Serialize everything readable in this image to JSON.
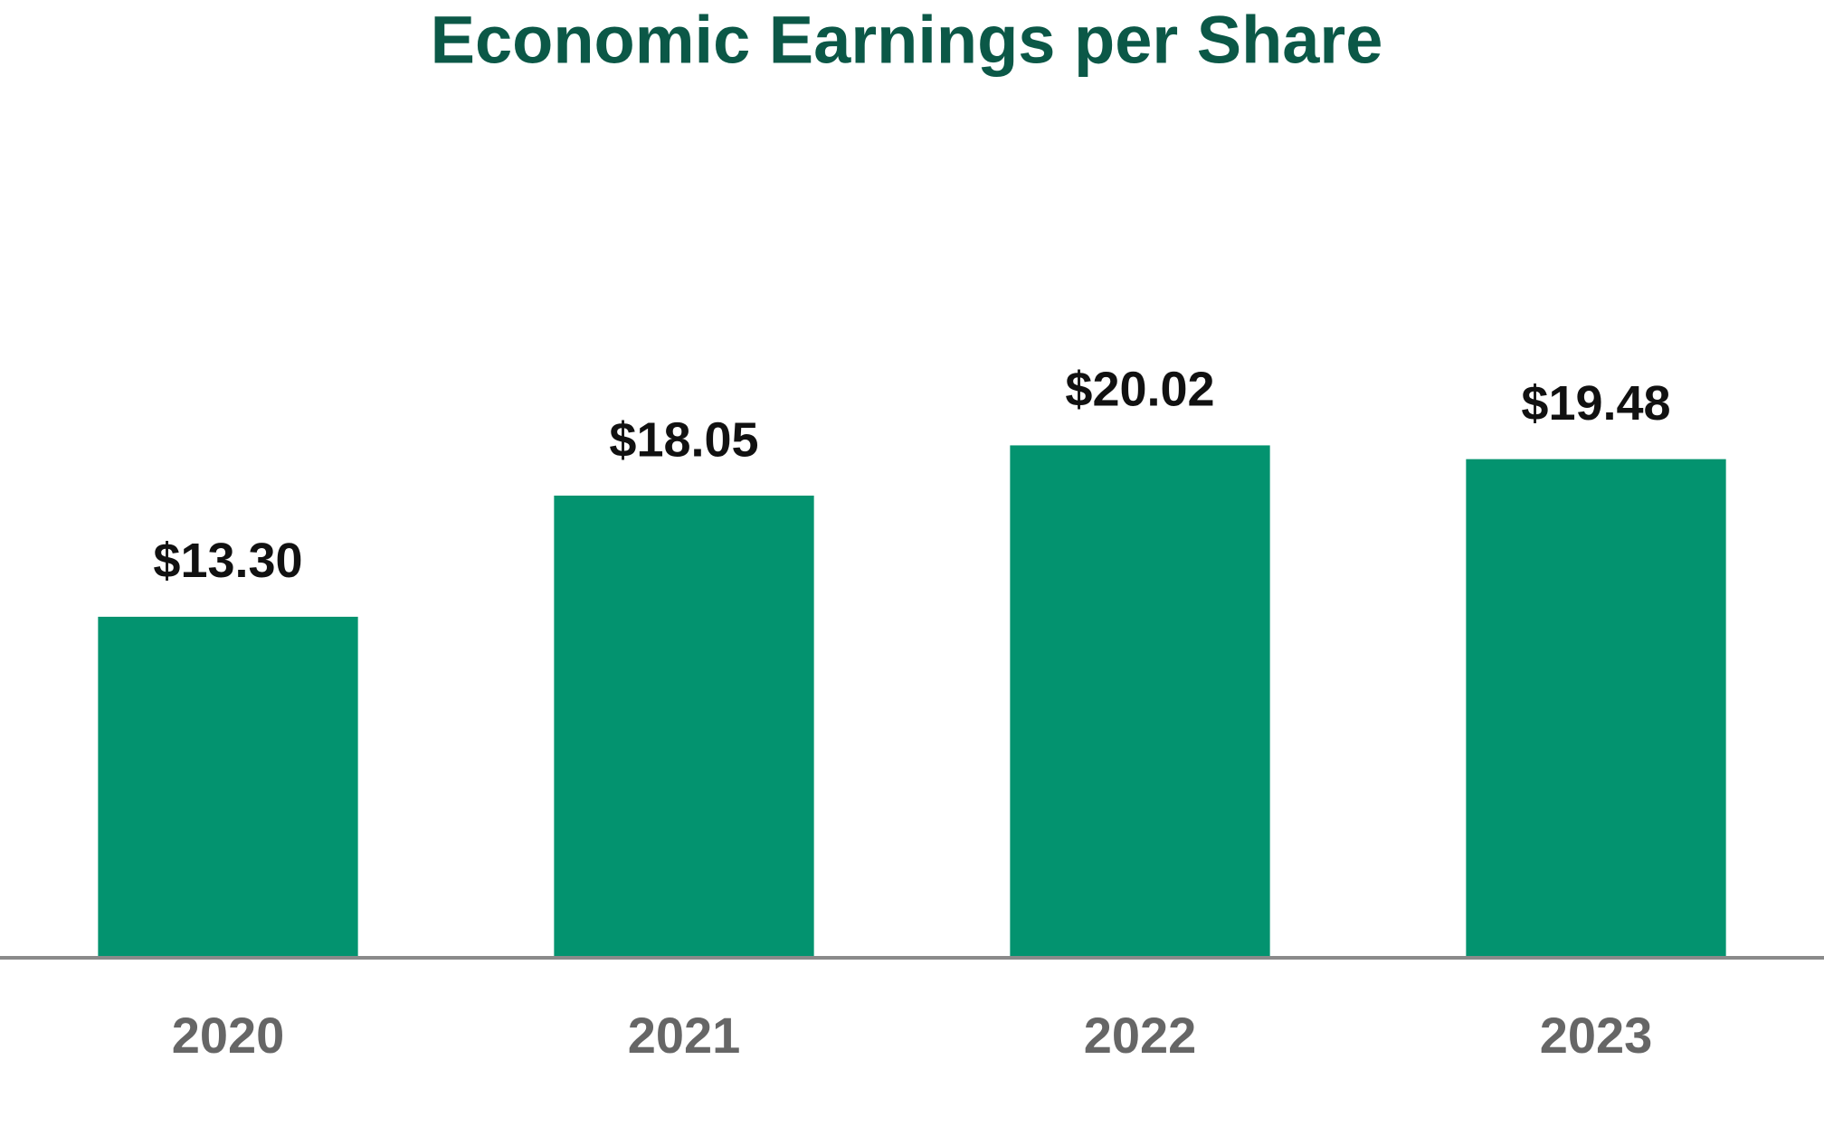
{
  "chart_data": {
    "type": "bar",
    "title": "Economic Earnings per Share",
    "categories": [
      "2020",
      "2021",
      "2022",
      "2023"
    ],
    "values": [
      13.3,
      18.05,
      20.02,
      19.48
    ],
    "value_labels": [
      "$13.30",
      "$18.05",
      "$20.02",
      "$19.48"
    ],
    "color": "#03936f",
    "title_color": "#0b5847",
    "ylim": [
      0,
      25
    ],
    "grid": false
  }
}
